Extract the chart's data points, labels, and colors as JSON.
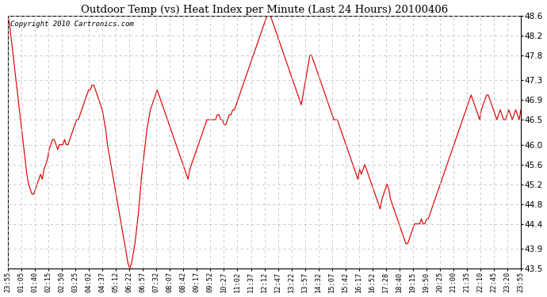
{
  "title": "Outdoor Temp (vs) Heat Index per Minute (Last 24 Hours) 20100406",
  "copyright": "Copyright 2010 Cartronics.com",
  "line_color": "#dd0000",
  "background_color": "#ffffff",
  "grid_color": "#bbbbbb",
  "ylim": [
    43.5,
    48.6
  ],
  "yticks": [
    43.5,
    43.9,
    44.4,
    44.8,
    45.2,
    45.6,
    46.0,
    46.5,
    46.9,
    47.3,
    47.8,
    48.2,
    48.6
  ],
  "xtick_labels": [
    "23:55",
    "01:05",
    "01:40",
    "02:15",
    "02:50",
    "03:25",
    "04:02",
    "04:37",
    "05:12",
    "06:22",
    "06:57",
    "07:32",
    "08:07",
    "08:42",
    "09:17",
    "09:52",
    "10:27",
    "11:02",
    "11:37",
    "12:12",
    "12:47",
    "13:22",
    "13:57",
    "14:32",
    "15:07",
    "15:42",
    "16:17",
    "16:52",
    "17:28",
    "18:40",
    "19:15",
    "19:50",
    "20:25",
    "21:00",
    "21:35",
    "22:10",
    "22:45",
    "23:20",
    "23:55"
  ],
  "y_values": [
    48.6,
    48.4,
    48.1,
    47.8,
    47.5,
    47.2,
    46.9,
    46.6,
    46.3,
    46.0,
    45.7,
    45.4,
    45.2,
    45.1,
    45.0,
    45.0,
    45.1,
    45.2,
    45.3,
    45.4,
    45.3,
    45.5,
    45.6,
    45.7,
    45.9,
    46.0,
    46.1,
    46.1,
    46.0,
    45.9,
    46.0,
    46.0,
    46.0,
    46.1,
    46.0,
    46.0,
    46.1,
    46.2,
    46.3,
    46.4,
    46.5,
    46.5,
    46.6,
    46.7,
    46.8,
    46.9,
    47.0,
    47.1,
    47.1,
    47.2,
    47.2,
    47.1,
    47.0,
    46.9,
    46.8,
    46.7,
    46.5,
    46.3,
    46.0,
    45.8,
    45.6,
    45.4,
    45.2,
    45.0,
    44.8,
    44.6,
    44.4,
    44.2,
    44.0,
    43.8,
    43.6,
    43.5,
    43.6,
    43.8,
    44.0,
    44.3,
    44.6,
    45.0,
    45.4,
    45.7,
    46.0,
    46.3,
    46.5,
    46.7,
    46.8,
    46.9,
    47.0,
    47.1,
    47.0,
    46.9,
    46.8,
    46.7,
    46.6,
    46.5,
    46.4,
    46.3,
    46.2,
    46.1,
    46.0,
    45.9,
    45.8,
    45.7,
    45.6,
    45.5,
    45.4,
    45.3,
    45.5,
    45.6,
    45.7,
    45.8,
    45.9,
    46.0,
    46.1,
    46.2,
    46.3,
    46.4,
    46.5,
    46.5,
    46.5,
    46.5,
    46.5,
    46.5,
    46.6,
    46.6,
    46.5,
    46.5,
    46.4,
    46.4,
    46.5,
    46.6,
    46.6,
    46.7,
    46.7,
    46.8,
    46.9,
    47.0,
    47.1,
    47.2,
    47.3,
    47.4,
    47.5,
    47.6,
    47.7,
    47.8,
    47.9,
    48.0,
    48.1,
    48.2,
    48.3,
    48.4,
    48.5,
    48.6,
    48.6,
    48.6,
    48.5,
    48.4,
    48.3,
    48.2,
    48.1,
    48.0,
    47.9,
    47.8,
    47.7,
    47.6,
    47.5,
    47.4,
    47.3,
    47.2,
    47.1,
    47.0,
    46.9,
    46.8,
    47.0,
    47.2,
    47.4,
    47.6,
    47.8,
    47.8,
    47.7,
    47.6,
    47.5,
    47.4,
    47.3,
    47.2,
    47.1,
    47.0,
    46.9,
    46.8,
    46.7,
    46.6,
    46.5,
    46.5,
    46.5,
    46.4,
    46.3,
    46.2,
    46.1,
    46.0,
    45.9,
    45.8,
    45.7,
    45.6,
    45.5,
    45.4,
    45.3,
    45.5,
    45.4,
    45.5,
    45.6,
    45.5,
    45.4,
    45.3,
    45.2,
    45.1,
    45.0,
    44.9,
    44.8,
    44.7,
    44.9,
    45.0,
    45.1,
    45.2,
    45.1,
    44.9,
    44.8,
    44.7,
    44.6,
    44.5,
    44.4,
    44.3,
    44.2,
    44.1,
    44.0,
    44.0,
    44.1,
    44.2,
    44.3,
    44.4,
    44.4,
    44.4,
    44.4,
    44.5,
    44.4,
    44.4,
    44.5,
    44.5,
    44.6,
    44.7,
    44.8,
    44.9,
    45.0,
    45.1,
    45.2,
    45.3,
    45.4,
    45.5,
    45.6,
    45.7,
    45.8,
    45.9,
    46.0,
    46.1,
    46.2,
    46.3,
    46.4,
    46.5,
    46.6,
    46.7,
    46.8,
    46.9,
    47.0,
    46.9,
    46.8,
    46.7,
    46.6,
    46.5,
    46.7,
    46.8,
    46.9,
    47.0,
    47.0,
    46.9,
    46.8,
    46.7,
    46.6,
    46.5,
    46.6,
    46.7,
    46.6,
    46.5,
    46.5,
    46.6,
    46.7,
    46.6,
    46.5,
    46.6,
    46.7,
    46.6,
    46.5,
    46.7
  ]
}
